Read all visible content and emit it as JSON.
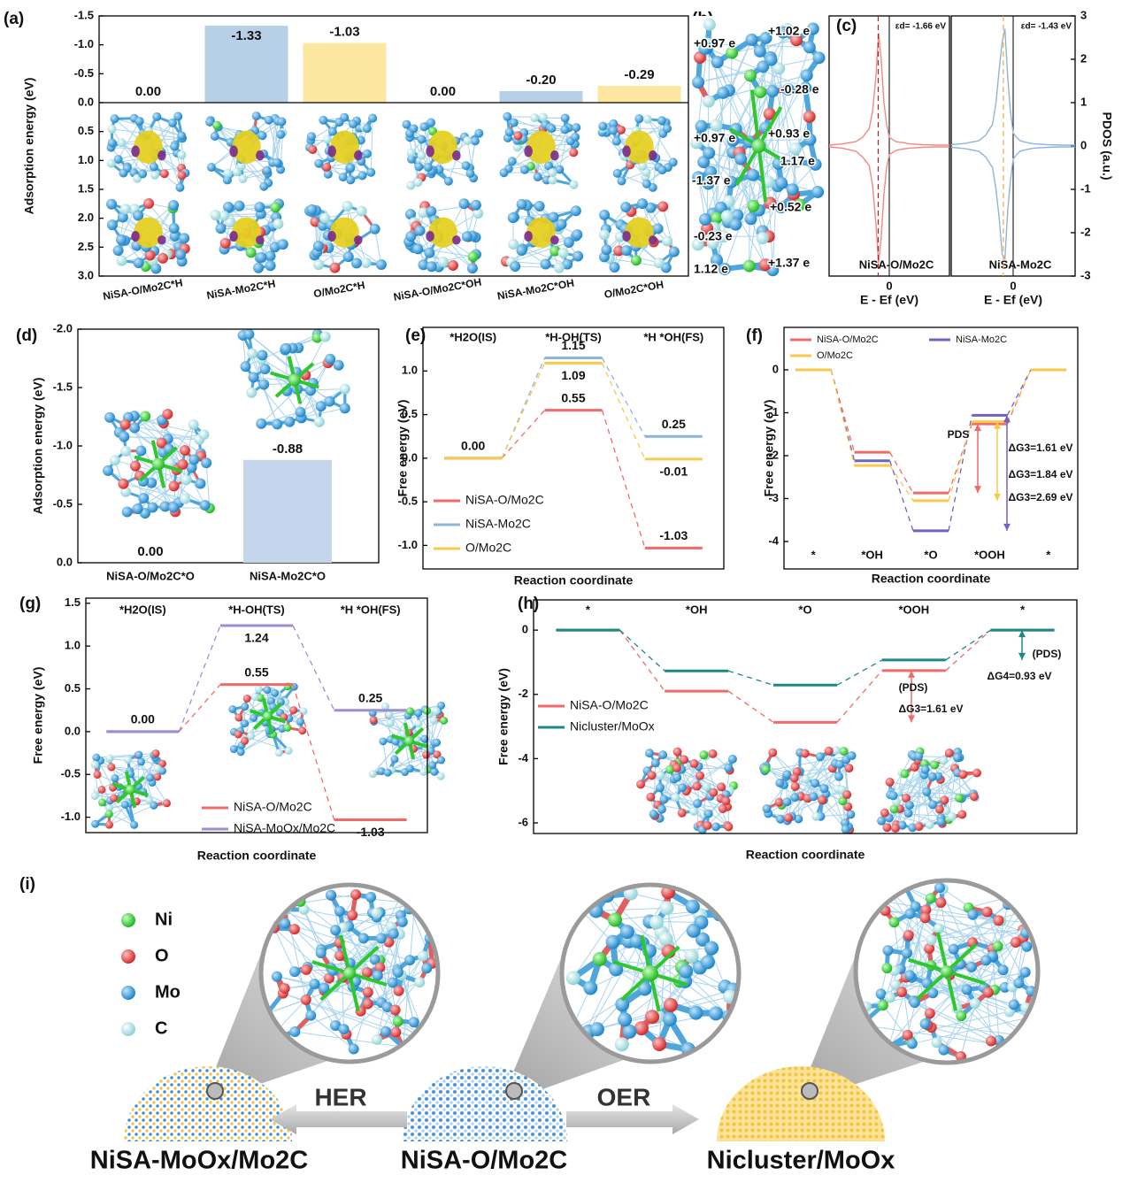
{
  "panel_labels": [
    "(a)",
    "(b)",
    "(c)",
    "(d)",
    "(e)",
    "(f)",
    "(g)",
    "(h)",
    "(i)"
  ],
  "chart_data": [
    {
      "type": "bar",
      "ylabel": "Adsorption energy (eV)",
      "categories": [
        "NiSA-O/Mo2C*H",
        "NiSA-Mo2C*H",
        "O/Mo2C*H",
        "NiSA-O/Mo2C*OH",
        "NiSA-Mo2C*OH",
        "O/Mo2C*OH"
      ],
      "values": [
        0,
        -1.33,
        -1.03,
        0,
        -0.2,
        -0.29
      ],
      "value_labels": [
        "0.00",
        "-1.33",
        "-1.03",
        "0.00",
        "-0.20",
        "-0.29"
      ],
      "colors": [
        "#f06a6a",
        "#b8cfe8",
        "#fde7a0",
        "#f06a6a",
        "#b8cfe8",
        "#fde7a0"
      ],
      "label_colors": [
        "#f06a6a",
        "#7ea7d2",
        "#f5b400",
        "#f06a6a",
        "#7ea7d2",
        "#f5b400"
      ],
      "ylim": [
        3,
        -1.5
      ],
      "yticks": [
        -1.5,
        {
          "value": -1,
          "label": "-1.0"
        },
        -0.5,
        {
          "value": 0,
          "label": "0.0"
        },
        0.5,
        {
          "value": 1,
          "label": "1.0"
        },
        1.5,
        {
          "value": 2,
          "label": "2.0"
        },
        2.5,
        {
          "value": 3,
          "label": "3.0"
        }
      ]
    },
    {
      "type": "line",
      "xlabel": "E - Ef (eV)",
      "x": [
        -9,
        -7,
        -5,
        -4,
        -3,
        -2.5,
        -2,
        -1.6,
        -1.2,
        -0.8,
        -0.4,
        0,
        0.5,
        1,
        2,
        3,
        5,
        7,
        9
      ],
      "xlim": [
        -9,
        9
      ],
      "xticks": [
        0
      ],
      "ylim": [
        -3,
        3
      ],
      "d_band_center": -1.66,
      "annotation": "εd= -1.66 eV",
      "series": [
        {
          "name": "NiSA-O/Mo2C",
          "color": "#f08a84",
          "values": [
            0.02,
            0.05,
            0.1,
            0.2,
            0.4,
            0.8,
            1.6,
            2.6,
            2.0,
            1.0,
            0.5,
            0.2,
            0.15,
            0.1,
            0.08,
            0.05,
            0.03,
            0.02,
            0.02
          ]
        },
        {
          "color": "#f08a84",
          "values": [
            -0.02,
            -0.05,
            -0.12,
            -0.25,
            -0.45,
            -0.9,
            -1.8,
            -2.7,
            -2.1,
            -1.1,
            -0.5,
            -0.2,
            -0.15,
            -0.1,
            -0.07,
            -0.05,
            -0.03,
            -0.02,
            -0.02
          ]
        }
      ]
    },
    {
      "type": "line",
      "xlabel": "E - Ef (eV)",
      "ylabel": "PDOS (a.u.)",
      "x": [
        -9,
        -7,
        -5,
        -4,
        -3,
        -2.5,
        -2,
        -1.6,
        -1.2,
        -0.8,
        -0.4,
        0,
        0.5,
        1,
        2,
        3,
        5,
        7,
        9
      ],
      "xlim": [
        -9,
        9
      ],
      "xticks": [
        0
      ],
      "ylim": [
        -3,
        3
      ],
      "yticks": [
        -3,
        -2,
        -1,
        0,
        1,
        2,
        3
      ],
      "d_band_center": -1.43,
      "annotation": "εd= -1.43 eV",
      "series": [
        {
          "name": "NiSA-Mo2C",
          "color": "#8fb4dc",
          "values": [
            0.03,
            0.06,
            0.12,
            0.25,
            0.5,
            1.0,
            1.8,
            2.4,
            2.7,
            1.6,
            0.8,
            0.3,
            0.2,
            0.12,
            0.08,
            0.05,
            0.03,
            0.02,
            0.02
          ]
        },
        {
          "color": "#8fb4dc",
          "values": [
            -0.03,
            -0.06,
            -0.12,
            -0.25,
            -0.5,
            -1.0,
            -1.7,
            -2.5,
            -2.6,
            -1.5,
            -0.8,
            -0.3,
            -0.2,
            -0.12,
            -0.08,
            -0.05,
            -0.03,
            -0.02,
            -0.02
          ]
        }
      ]
    },
    {
      "type": "bar",
      "ylabel": "Adsorption energy (eV)",
      "categories": [
        "NiSA-O/Mo2C*O",
        "NiSA-Mo2C*O"
      ],
      "values": [
        0,
        -0.88
      ],
      "value_labels": [
        "0.00",
        "-0.88"
      ],
      "colors": [
        "#f06a6a",
        "#c5d6ec"
      ],
      "label_colors": [
        "#f06a6a",
        "#7ea7d2"
      ],
      "ylim": [
        0,
        -2
      ],
      "yticks": [
        {
          "value": 0,
          "label": "0.0"
        },
        -0.5,
        {
          "value": -1,
          "label": "-1.0"
        },
        -1.5,
        {
          "value": -2,
          "label": "-2.0"
        }
      ]
    },
    {
      "type": "energy",
      "ylabel": "Free energy (eV)",
      "xlabel": "Reaction coordinate",
      "categories": [
        "*H2O(IS)",
        "*H-OH(TS)",
        "*H *OH(FS)"
      ],
      "ylim": [
        -1.27,
        1.5
      ],
      "yticks": [
        {
          "value": -1,
          "label": "-1.0"
        },
        -0.5,
        {
          "value": 0,
          "label": "0.0"
        },
        0.5,
        {
          "value": 1,
          "label": "1.0"
        }
      ],
      "series": [
        {
          "name": "NiSA-O/Mo2C",
          "color": "#f06a6a",
          "values": [
            0,
            0.55,
            -1.03
          ],
          "value_labels": [
            null,
            "0.55",
            "-1.03"
          ]
        },
        {
          "name": "NiSA-Mo2C",
          "color": "#8fb4dc",
          "values": [
            0,
            1.15,
            0.25
          ],
          "value_labels": [
            null,
            "1.15",
            "0.25"
          ]
        },
        {
          "name": "O/Mo2C",
          "color": "#f9c94a",
          "values": [
            0,
            1.09,
            -0.01
          ],
          "value_labels": [
            "0.00",
            "1.09",
            "-0.01"
          ]
        }
      ]
    },
    {
      "type": "energy",
      "ylabel": "Free energy (eV)",
      "xlabel": "Reaction coordinate",
      "categories": [
        "*",
        "*OH",
        "*O",
        "*OOH",
        "*"
      ],
      "ylim": [
        -4.64,
        0.99
      ],
      "yticks": [
        0,
        -1,
        -2,
        -3,
        -4
      ],
      "series": [
        {
          "name": "NiSA-O/Mo2C",
          "color": "#f06a6a",
          "values": [
            0,
            -1.92,
            -2.87,
            -1.26,
            0
          ]
        },
        {
          "name": "NiSA-Mo2C",
          "color": "#6f63c4",
          "values": [
            0,
            -2.12,
            -3.75,
            -1.06,
            0
          ]
        },
        {
          "name": "O/Mo2C",
          "color": "#f9c94a",
          "values": [
            0,
            -2.23,
            -3.05,
            -1.21,
            0
          ]
        }
      ],
      "annotations": [
        "PDS",
        "ΔG3=1.61 eV",
        "ΔG3=1.84 eV",
        "ΔG3=2.69 eV"
      ]
    },
    {
      "type": "energy",
      "ylabel": "Free energy (eV)",
      "xlabel": "Reaction coordinate",
      "categories": [
        "*H2O(IS)",
        "*H-OH(TS)",
        "*H *OH(FS)"
      ],
      "ylim": [
        -1.18,
        1.56
      ],
      "yticks": [
        {
          "value": -1,
          "label": "-1.0"
        },
        -0.5,
        {
          "value": 0,
          "label": "0.0"
        },
        0.5,
        {
          "value": 1,
          "label": "1.0"
        },
        1.5
      ],
      "series": [
        {
          "name": "NiSA-O/Mo2C",
          "color": "#f06a6a",
          "values": [
            0,
            0.55,
            -1.03
          ],
          "value_labels": [
            null,
            "0.55",
            "-1.03"
          ]
        },
        {
          "name": "NiSA-MoOx/Mo2C",
          "color": "#9a8fd6",
          "values": [
            0,
            1.24,
            0.25
          ],
          "value_labels": [
            "0.00",
            "1.24",
            "0.25"
          ]
        }
      ]
    },
    {
      "type": "energy",
      "ylabel": "Free energy (eV)",
      "xlabel": "Reaction coordinate",
      "categories": [
        "*",
        "*OH",
        "*O",
        "*OOH",
        "*"
      ],
      "ylim": [
        -6.33,
        0.94
      ],
      "yticks": [
        0,
        -2,
        -4,
        -6
      ],
      "series": [
        {
          "name": "NiSA-O/Mo2C",
          "color": "#f06a6a",
          "values": [
            0,
            -1.9,
            -2.87,
            -1.26,
            0
          ]
        },
        {
          "name": "Nicluster/MoOx",
          "color": "#1a8a84",
          "values": [
            0,
            -1.27,
            -1.71,
            -0.93,
            0
          ]
        }
      ],
      "annotations": [
        "(PDS)",
        "ΔG3=1.61 eV",
        "(PDS)",
        "ΔG4=0.93 eV"
      ]
    }
  ],
  "panel_b": {
    "charges": [
      "+0.97 e",
      "+1.02 e",
      "-0.28 e",
      "+0.97 e",
      "+0.93 e",
      "1.17 e",
      "-1.37 e",
      "+0.52 e",
      "-0.23 e",
      "+1.37 e",
      "1.12 e"
    ]
  },
  "panel_i": {
    "legend": [
      "Ni",
      "O",
      "Mo",
      "C"
    ],
    "arrows": [
      "HER",
      "OER"
    ],
    "materials": [
      "NiSA-MoOx/Mo2C",
      "NiSA-O/Mo2C",
      "Nicluster/MoOx"
    ]
  }
}
